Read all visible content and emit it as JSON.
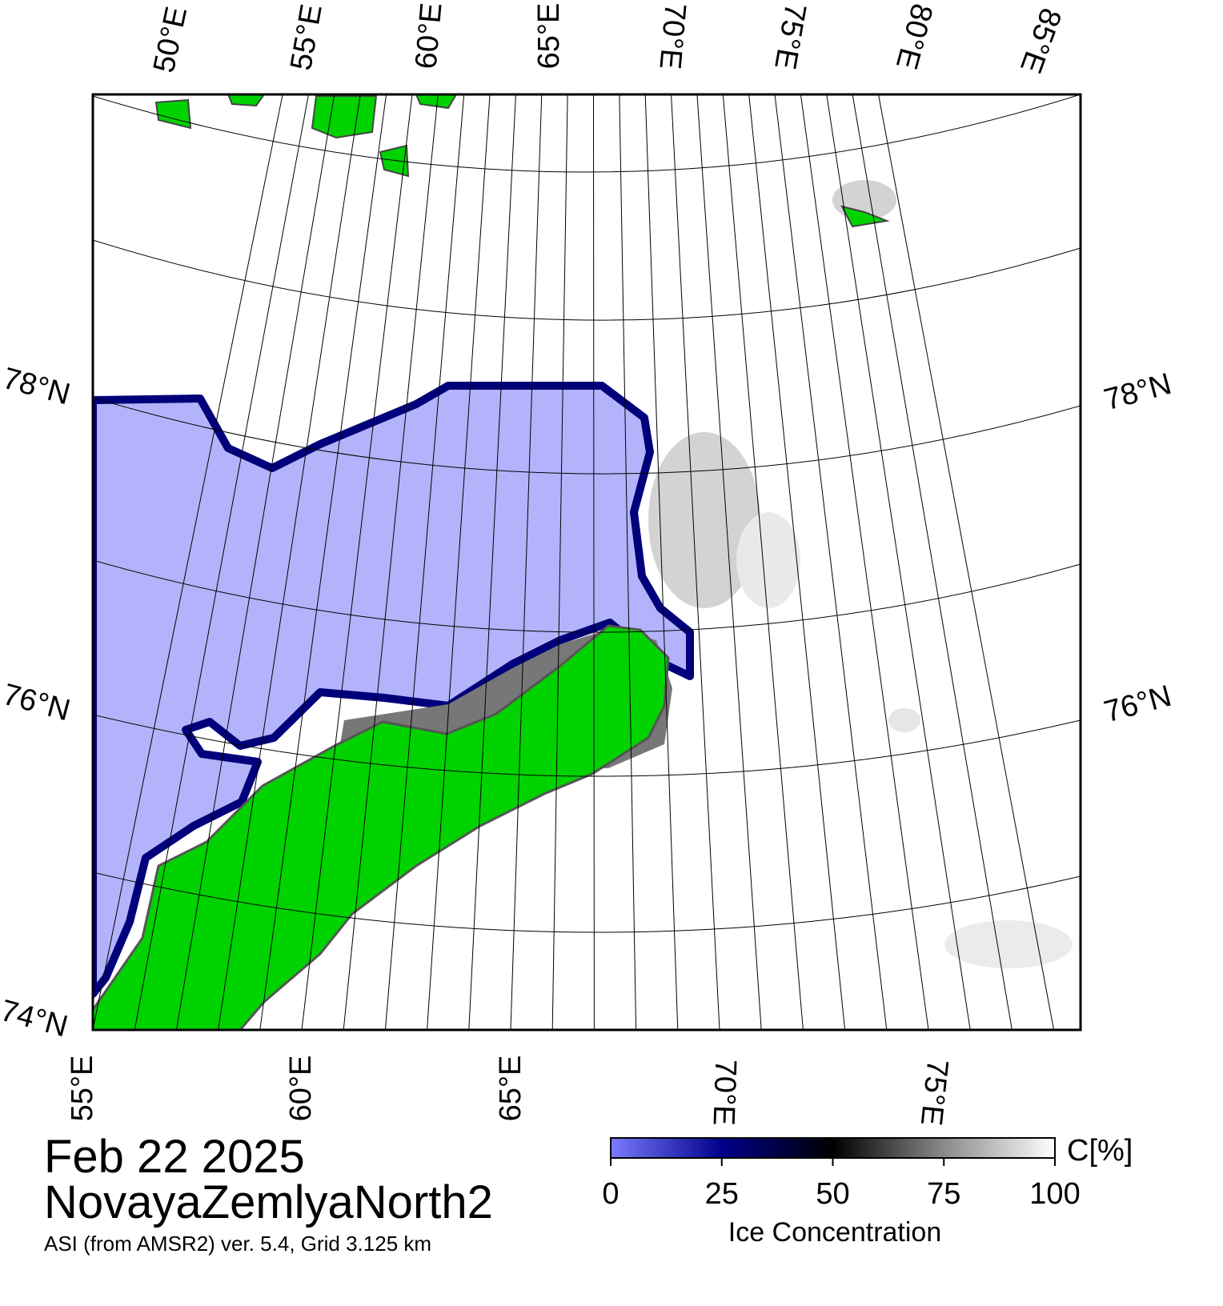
{
  "map": {
    "top_lon_labels": [
      "50°E",
      "55°E",
      "60°E",
      "65°E",
      "70°E",
      "75°E",
      "80°E",
      "85°E"
    ],
    "bottom_lon_labels": [
      "55°E",
      "60°E",
      "65°E",
      "70°E",
      "75°E"
    ],
    "left_lat_labels": [
      "78°N",
      "76°N",
      "74°N"
    ],
    "right_lat_labels": [
      "78°N",
      "76°N"
    ]
  },
  "title": {
    "date": "Feb 22 2025",
    "region": "NovayaZemlyaNorth2",
    "info": "ASI (from AMSR2) ver. 5.4,  Grid 3.125 km"
  },
  "colorbar": {
    "label": "Ice Concentration",
    "unit": "C[%]",
    "range": [
      0,
      100
    ],
    "ticks": [
      0,
      25,
      50,
      75,
      100
    ]
  }
}
